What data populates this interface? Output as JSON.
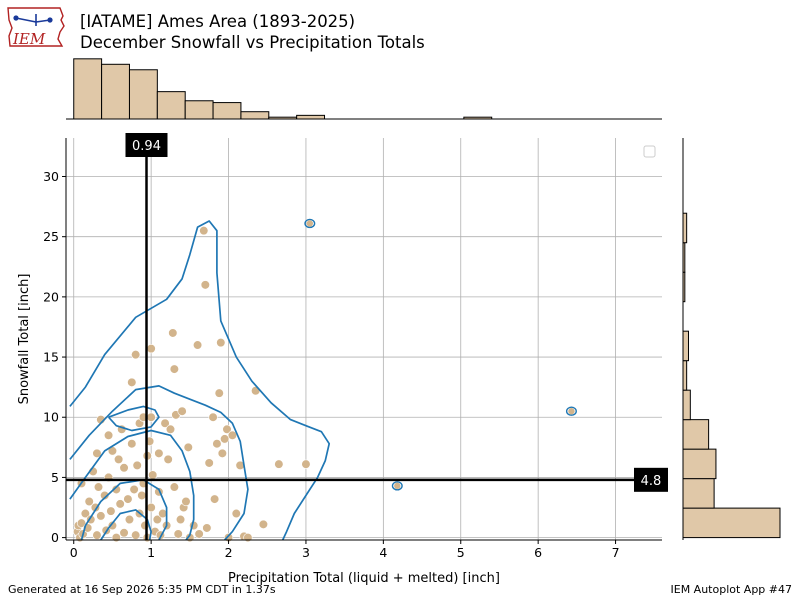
{
  "header": {
    "logo_text": "IEM",
    "title_line1": "[IATAME] Ames Area (1893-2025)",
    "title_line2": "December Snowfall vs Precipitation Totals"
  },
  "footer": {
    "generated": "Generated at 16 Sep 2026 5:35 PM CDT in 1.37s",
    "app": "IEM Autoplot App #47"
  },
  "colors": {
    "point": "#d2b48c",
    "bar_fill": "#e0c8a8",
    "contour": "#1f77b4",
    "grid": "#b0b0b0"
  },
  "chart_data": {
    "type": "scatter",
    "xlabel": "Precipitation Total (liquid + melted) [inch]",
    "ylabel": "Snowfall Total [inch]",
    "xlim": [
      -0.1,
      7.6
    ],
    "ylim": [
      -0.2,
      33.2
    ],
    "xticks": [
      0,
      1,
      2,
      3,
      4,
      5,
      6,
      7
    ],
    "yticks": [
      0,
      5,
      10,
      15,
      20,
      25,
      30
    ],
    "grid": true,
    "legend": "top-right (empty)",
    "mean_precip": {
      "value": 0.94,
      "label": "0.94"
    },
    "mean_snow": {
      "value": 4.8,
      "label": "4.8"
    },
    "points": [
      [
        0.05,
        0.5
      ],
      [
        0.06,
        1.0
      ],
      [
        0.08,
        0.0
      ],
      [
        0.1,
        1.2
      ],
      [
        0.1,
        4.5
      ],
      [
        0.12,
        0.3
      ],
      [
        0.15,
        2.0
      ],
      [
        0.18,
        0.8
      ],
      [
        0.2,
        3.0
      ],
      [
        0.22,
        1.5
      ],
      [
        0.25,
        5.5
      ],
      [
        0.28,
        2.5
      ],
      [
        0.3,
        0.2
      ],
      [
        0.3,
        7.0
      ],
      [
        0.32,
        4.2
      ],
      [
        0.35,
        9.8
      ],
      [
        0.35,
        1.8
      ],
      [
        0.4,
        3.5
      ],
      [
        0.42,
        0.6
      ],
      [
        0.45,
        5.0
      ],
      [
        0.45,
        8.5
      ],
      [
        0.48,
        2.2
      ],
      [
        0.5,
        7.2
      ],
      [
        0.5,
        1.0
      ],
      [
        0.55,
        0.0
      ],
      [
        0.55,
        4.0
      ],
      [
        0.58,
        6.5
      ],
      [
        0.6,
        2.8
      ],
      [
        0.62,
        9.0
      ],
      [
        0.65,
        5.8
      ],
      [
        0.65,
        0.4
      ],
      [
        0.7,
        3.2
      ],
      [
        0.72,
        1.5
      ],
      [
        0.75,
        12.9
      ],
      [
        0.75,
        7.8
      ],
      [
        0.78,
        4.0
      ],
      [
        0.8,
        15.2
      ],
      [
        0.8,
        0.2
      ],
      [
        0.82,
        6.0
      ],
      [
        0.85,
        9.5
      ],
      [
        0.85,
        2.0
      ],
      [
        0.88,
        3.5
      ],
      [
        0.9,
        10.0
      ],
      [
        0.9,
        4.5
      ],
      [
        0.92,
        1.0
      ],
      [
        0.95,
        0.0
      ],
      [
        0.95,
        6.8
      ],
      [
        0.98,
        8.0
      ],
      [
        1.0,
        15.7
      ],
      [
        1.0,
        2.5
      ],
      [
        1.0,
        10.0
      ],
      [
        1.02,
        5.2
      ],
      [
        1.05,
        0.5
      ],
      [
        1.08,
        1.5
      ],
      [
        1.1,
        3.8
      ],
      [
        1.1,
        7.0
      ],
      [
        1.12,
        0.2
      ],
      [
        1.15,
        2.0
      ],
      [
        1.18,
        9.5
      ],
      [
        1.2,
        1.0
      ],
      [
        1.22,
        6.5
      ],
      [
        1.25,
        9.0
      ],
      [
        1.28,
        17.0
      ],
      [
        1.3,
        14.0
      ],
      [
        1.3,
        4.2
      ],
      [
        1.32,
        10.2
      ],
      [
        1.35,
        0.3
      ],
      [
        1.38,
        1.5
      ],
      [
        1.4,
        10.5
      ],
      [
        1.42,
        2.5
      ],
      [
        1.45,
        3.0
      ],
      [
        1.48,
        7.5
      ],
      [
        1.5,
        0.0
      ],
      [
        1.55,
        1.0
      ],
      [
        1.6,
        16.0
      ],
      [
        1.62,
        0.3
      ],
      [
        1.68,
        25.5
      ],
      [
        1.7,
        21.0
      ],
      [
        1.72,
        0.8
      ],
      [
        1.75,
        6.2
      ],
      [
        1.8,
        10.0
      ],
      [
        1.82,
        3.2
      ],
      [
        1.85,
        7.8
      ],
      [
        1.88,
        12.0
      ],
      [
        1.9,
        16.2
      ],
      [
        1.92,
        7.0
      ],
      [
        1.95,
        8.2
      ],
      [
        1.98,
        9.0
      ],
      [
        2.0,
        0.0
      ],
      [
        2.05,
        8.5
      ],
      [
        2.1,
        2.0
      ],
      [
        2.15,
        6.0
      ],
      [
        2.2,
        0.1
      ],
      [
        2.25,
        0.0
      ],
      [
        2.35,
        12.2
      ],
      [
        2.45,
        1.1
      ],
      [
        2.65,
        6.1
      ],
      [
        3.0,
        6.1
      ]
    ],
    "outliers": [
      [
        3.05,
        26.1
      ],
      [
        4.18,
        4.3
      ],
      [
        6.43,
        10.5
      ]
    ],
    "contours": [
      [
        [
          -0.05,
          10.9
        ],
        [
          0.15,
          12.5
        ],
        [
          0.4,
          15.2
        ],
        [
          0.8,
          18.3
        ],
        [
          1.2,
          19.8
        ],
        [
          1.4,
          21.5
        ],
        [
          1.5,
          23.5
        ],
        [
          1.6,
          25.8
        ],
        [
          1.75,
          26.3
        ],
        [
          1.85,
          25.5
        ],
        [
          1.85,
          22.0
        ],
        [
          1.9,
          18.0
        ],
        [
          2.1,
          15.0
        ],
        [
          2.3,
          13.0
        ],
        [
          2.55,
          11.2
        ],
        [
          2.8,
          9.8
        ],
        [
          3.0,
          9.3
        ],
        [
          3.2,
          8.8
        ],
        [
          3.3,
          7.8
        ],
        [
          3.25,
          6.4
        ],
        [
          3.15,
          5.0
        ],
        [
          3.0,
          3.5
        ],
        [
          2.85,
          2.0
        ],
        [
          2.75,
          0.5
        ],
        [
          2.7,
          -0.2
        ]
      ],
      [
        [
          -0.05,
          6.5
        ],
        [
          0.2,
          8.5
        ],
        [
          0.5,
          10.5
        ],
        [
          0.8,
          12.3
        ],
        [
          1.1,
          12.6
        ],
        [
          1.3,
          12.0
        ],
        [
          1.5,
          11.5
        ],
        [
          1.7,
          11.0
        ],
        [
          1.9,
          10.4
        ],
        [
          2.05,
          9.5
        ],
        [
          2.15,
          8.0
        ],
        [
          2.2,
          6.0
        ],
        [
          2.25,
          4.0
        ],
        [
          2.2,
          2.0
        ],
        [
          2.05,
          0.5
        ],
        [
          1.95,
          -0.2
        ]
      ],
      [
        [
          -0.05,
          3.2
        ],
        [
          0.15,
          5.0
        ],
        [
          0.4,
          7.2
        ],
        [
          0.7,
          8.4
        ],
        [
          1.0,
          8.9
        ],
        [
          1.25,
          8.5
        ],
        [
          1.4,
          7.2
        ],
        [
          1.5,
          5.5
        ],
        [
          1.55,
          3.5
        ],
        [
          1.55,
          1.5
        ],
        [
          1.5,
          0.2
        ],
        [
          1.45,
          -0.2
        ]
      ],
      [
        [
          0.1,
          -0.2
        ],
        [
          0.15,
          1.0
        ],
        [
          0.35,
          3.0
        ],
        [
          0.6,
          4.5
        ],
        [
          0.9,
          4.8
        ],
        [
          1.1,
          4.0
        ],
        [
          1.2,
          2.5
        ],
        [
          1.2,
          1.0
        ],
        [
          1.1,
          -0.2
        ]
      ],
      [
        [
          0.45,
          10.0
        ],
        [
          0.7,
          10.6
        ],
        [
          0.9,
          10.9
        ],
        [
          1.05,
          10.6
        ],
        [
          1.1,
          10.0
        ],
        [
          1.0,
          9.2
        ],
        [
          0.75,
          8.9
        ],
        [
          0.55,
          9.3
        ],
        [
          0.45,
          10.0
        ]
      ],
      [
        [
          0.35,
          -0.2
        ],
        [
          0.45,
          0.8
        ],
        [
          0.6,
          2.0
        ],
        [
          0.8,
          2.3
        ],
        [
          0.95,
          1.5
        ],
        [
          1.0,
          0.5
        ],
        [
          0.98,
          -0.2
        ]
      ]
    ],
    "top_histogram": {
      "bin_width": 0.36,
      "x_start": 0.0,
      "counts": [
        33,
        30,
        27,
        15,
        10,
        9,
        4,
        1,
        2,
        0,
        0,
        0,
        0,
        0,
        1,
        0,
        0,
        0,
        0,
        0,
        0,
        0,
        0,
        0,
        0,
        0,
        0,
        0,
        0,
        1
      ],
      "max_count": 34
    },
    "right_histogram": {
      "bins": [
        {
          "from": 0.0,
          "to": 2.45,
          "count": 53
        },
        {
          "from": 2.45,
          "to": 4.9,
          "count": 17
        },
        {
          "from": 4.9,
          "to": 7.35,
          "count": 18
        },
        {
          "from": 7.35,
          "to": 9.8,
          "count": 14
        },
        {
          "from": 9.8,
          "to": 12.25,
          "count": 4
        },
        {
          "from": 12.25,
          "to": 14.7,
          "count": 2
        },
        {
          "from": 14.7,
          "to": 17.15,
          "count": 3
        },
        {
          "from": 19.6,
          "to": 22.05,
          "count": 1
        },
        {
          "from": 22.05,
          "to": 24.5,
          "count": 1
        },
        {
          "from": 24.5,
          "to": 26.95,
          "count": 2
        }
      ],
      "max_count": 53
    }
  }
}
